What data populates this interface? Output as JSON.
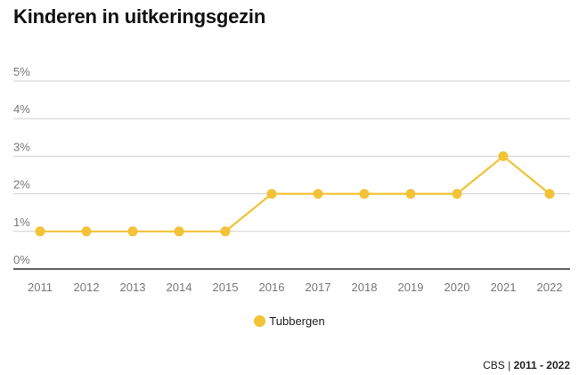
{
  "chart_data": {
    "type": "line",
    "title": "Kinderen in uitkeringsgezin",
    "xlabel": "",
    "ylabel": "",
    "ylim": [
      0,
      5
    ],
    "y_ticks": [
      "0%",
      "1%",
      "2%",
      "3%",
      "4%",
      "5%"
    ],
    "categories": [
      "2011",
      "2012",
      "2013",
      "2014",
      "2015",
      "2016",
      "2017",
      "2018",
      "2019",
      "2020",
      "2021",
      "2022"
    ],
    "series": [
      {
        "name": "Tubbergen",
        "color": "#f2c237",
        "values": [
          1,
          1,
          1,
          1,
          1,
          2,
          2,
          2,
          2,
          2,
          3,
          2
        ]
      }
    ],
    "grid": true,
    "legend_position": "bottom-center"
  },
  "footer": {
    "source": "CBS",
    "separator": " | ",
    "period": "2011 - 2022"
  }
}
